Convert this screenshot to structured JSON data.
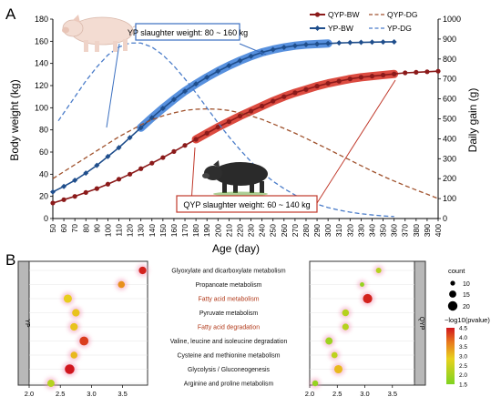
{
  "chart_data": [
    {
      "type": "line",
      "panel_label": "A",
      "xlabel": "Age (day)",
      "ylabel": "Body weight (kg)",
      "y2label": "Daily gain (g)",
      "xlim": [
        50,
        400
      ],
      "ylim": [
        0,
        180
      ],
      "y2lim": [
        0,
        1000
      ],
      "x_ticks": [
        50,
        60,
        70,
        80,
        90,
        100,
        110,
        120,
        130,
        140,
        150,
        160,
        170,
        180,
        190,
        200,
        210,
        220,
        230,
        240,
        250,
        260,
        270,
        280,
        290,
        300,
        310,
        320,
        330,
        340,
        350,
        360,
        370,
        380,
        390,
        400
      ],
      "y_ticks": [
        0,
        20,
        40,
        60,
        80,
        100,
        120,
        140,
        160,
        180
      ],
      "y2_ticks": [
        0,
        100,
        200,
        300,
        400,
        500,
        600,
        700,
        800,
        900,
        1000
      ],
      "legend_position": "top-right",
      "series": [
        {
          "name": "QYP-BW",
          "axis": "left",
          "color": "#8b1a1a",
          "x": [
            50,
            60,
            70,
            80,
            90,
            100,
            110,
            120,
            130,
            140,
            150,
            160,
            170,
            180,
            190,
            200,
            210,
            220,
            230,
            240,
            250,
            260,
            270,
            280,
            290,
            300,
            310,
            320,
            330,
            340,
            350,
            360,
            370,
            380,
            390,
            400
          ],
          "values": [
            14,
            17,
            20,
            23.5,
            27,
            31,
            35.5,
            40,
            45,
            50,
            55,
            60.5,
            66,
            71.5,
            77,
            82.5,
            87.5,
            92.5,
            97,
            101.5,
            106,
            110,
            113.5,
            116.5,
            119.5,
            122,
            124,
            126,
            127.5,
            128.5,
            129.5,
            130.5,
            131.5,
            132,
            132.5,
            133
          ]
        },
        {
          "name": "YP-BW",
          "axis": "left",
          "color": "#1f4e8c",
          "x": [
            50,
            60,
            70,
            80,
            90,
            100,
            110,
            120,
            130,
            140,
            150,
            160,
            170,
            180,
            190,
            200,
            210,
            220,
            230,
            240,
            250,
            260,
            270,
            280,
            290,
            300,
            310,
            320,
            330,
            340,
            350,
            360
          ],
          "values": [
            24,
            29,
            34.5,
            41,
            48,
            56,
            64,
            73,
            82,
            91,
            99.5,
            107.5,
            115,
            121.5,
            127.5,
            133,
            138,
            142.5,
            146.5,
            150,
            152.5,
            154.5,
            156,
            157,
            157.5,
            158,
            158.5,
            158.8,
            159,
            159.2,
            159.4,
            159.5
          ]
        },
        {
          "name": "QYP-DG",
          "axis": "right",
          "color": "#a0522d",
          "x": [
            50,
            60,
            70,
            80,
            90,
            100,
            110,
            120,
            130,
            140,
            150,
            160,
            170,
            180,
            190,
            200,
            210,
            220,
            230,
            240,
            250,
            260,
            270,
            280,
            290,
            300,
            310,
            320,
            330,
            340,
            350,
            360,
            370,
            380,
            390,
            400
          ],
          "values": [
            200,
            235,
            270,
            305,
            340,
            375,
            410,
            440,
            470,
            495,
            515,
            530,
            542,
            548,
            550,
            548,
            542,
            530,
            515,
            497,
            475,
            452,
            428,
            402,
            375,
            348,
            320,
            293,
            265,
            238,
            212,
            188,
            165,
            143,
            122,
            100
          ]
        },
        {
          "name": "YP-DG",
          "axis": "right",
          "color": "#4a7cc9",
          "x": [
            55,
            60,
            70,
            80,
            90,
            100,
            110,
            120,
            130,
            140,
            150,
            160,
            170,
            180,
            190,
            200,
            210,
            220,
            230,
            240,
            250,
            260,
            270,
            280,
            290,
            300,
            310,
            320,
            330,
            340,
            350,
            360
          ],
          "values": [
            490,
            530,
            610,
            690,
            760,
            820,
            860,
            880,
            880,
            860,
            820,
            765,
            700,
            630,
            555,
            480,
            410,
            345,
            285,
            232,
            187,
            150,
            118,
            92,
            72,
            55,
            42,
            32,
            24,
            18,
            13,
            10
          ]
        }
      ],
      "highlights": [
        {
          "series": "YP-BW",
          "x_range": [
            130,
            300
          ],
          "color": "#3a7dd8"
        },
        {
          "series": "QYP-BW",
          "x_range": [
            180,
            365
          ],
          "color": "#d62b1e"
        }
      ],
      "annotations": [
        {
          "text": "YP slaughter weight: 80 ~ 160 kg",
          "border_color": "#3a6fc0"
        },
        {
          "text": "QYP slaughter weight: 60 ~ 140 kg",
          "border_color": "#c0392b"
        }
      ]
    },
    {
      "type": "scatter",
      "panel_label": "B",
      "categories": [
        "Glyoxylate and dicarboxylate metabolism",
        "Propanoate metabolism",
        "Fatty acid metabolism",
        "Pyruvate metabolism",
        "Fatty acid degradation",
        "Valine, leucine and isoleucine degradation",
        "Cysteine and methionine metabolism",
        "Glycolysis / Gluconeogenesis",
        "Arginine and proline metabolism"
      ],
      "highlighted_categories": [
        "Fatty acid metabolism",
        "Fatty acid degradation"
      ],
      "legend_position": "right",
      "size_legend": {
        "title": "count",
        "values": [
          10.0,
          15.0,
          20.0
        ]
      },
      "color_legend": {
        "title": "−log10(pvalue)",
        "ticks": [
          1.5,
          2.0,
          2.5,
          3.0,
          3.5,
          4.0,
          4.5
        ],
        "min": 1.5,
        "max": 4.5
      },
      "panels": [
        {
          "strip_label": "YP",
          "xlim": [
            2.0,
            3.9
          ],
          "x_ticks": [
            2.0,
            2.5,
            3.0,
            3.5
          ],
          "points": [
            {
              "category": "Glyoxylate and dicarboxylate metabolism",
              "x": 3.82,
              "count": 15,
              "pvalue": 4.4
            },
            {
              "category": "Propanoate metabolism",
              "x": 3.48,
              "count": 13,
              "pvalue": 3.5
            },
            {
              "category": "Fatty acid metabolism",
              "x": 2.62,
              "count": 17,
              "pvalue": 2.9
            },
            {
              "category": "Pyruvate metabolism",
              "x": 2.75,
              "count": 15,
              "pvalue": 3.0
            },
            {
              "category": "Fatty acid degradation",
              "x": 2.72,
              "count": 15,
              "pvalue": 3.0
            },
            {
              "category": "Valine, leucine and isoleucine degradation",
              "x": 2.88,
              "count": 19,
              "pvalue": 4.2
            },
            {
              "category": "Cysteine and methionine metabolism",
              "x": 2.72,
              "count": 13,
              "pvalue": 3.1
            },
            {
              "category": "Glycolysis / Gluconeogenesis",
              "x": 2.65,
              "count": 21,
              "pvalue": 4.5
            },
            {
              "category": "Arginine and proline metabolism",
              "x": 2.35,
              "count": 14,
              "pvalue": 2.2
            }
          ]
        },
        {
          "strip_label": "QYP",
          "xlim": [
            2.0,
            3.9
          ],
          "x_ticks": [
            2.0,
            2.5,
            3.0,
            3.5
          ],
          "points": [
            {
              "category": "Glyoxylate and dicarboxylate metabolism",
              "x": 3.25,
              "count": 9,
              "pvalue": 2.2
            },
            {
              "category": "Propanoate metabolism",
              "x": 2.95,
              "count": 6,
              "pvalue": 1.8
            },
            {
              "category": "Fatty acid metabolism",
              "x": 3.05,
              "count": 20,
              "pvalue": 4.4
            },
            {
              "category": "Pyruvate metabolism",
              "x": 2.65,
              "count": 13,
              "pvalue": 2.2
            },
            {
              "category": "Fatty acid degradation",
              "x": 2.65,
              "count": 12,
              "pvalue": 2.2
            },
            {
              "category": "Valine, leucine and isoleucine degradation",
              "x": 2.35,
              "count": 14,
              "pvalue": 1.9
            },
            {
              "category": "Cysteine and methionine metabolism",
              "x": 2.45,
              "count": 11,
              "pvalue": 2.3
            },
            {
              "category": "Glycolysis / Gluconeogenesis",
              "x": 2.52,
              "count": 17,
              "pvalue": 3.1
            },
            {
              "category": "Arginine and proline metabolism",
              "x": 2.1,
              "count": 10,
              "pvalue": 1.8
            }
          ]
        }
      ]
    }
  ]
}
